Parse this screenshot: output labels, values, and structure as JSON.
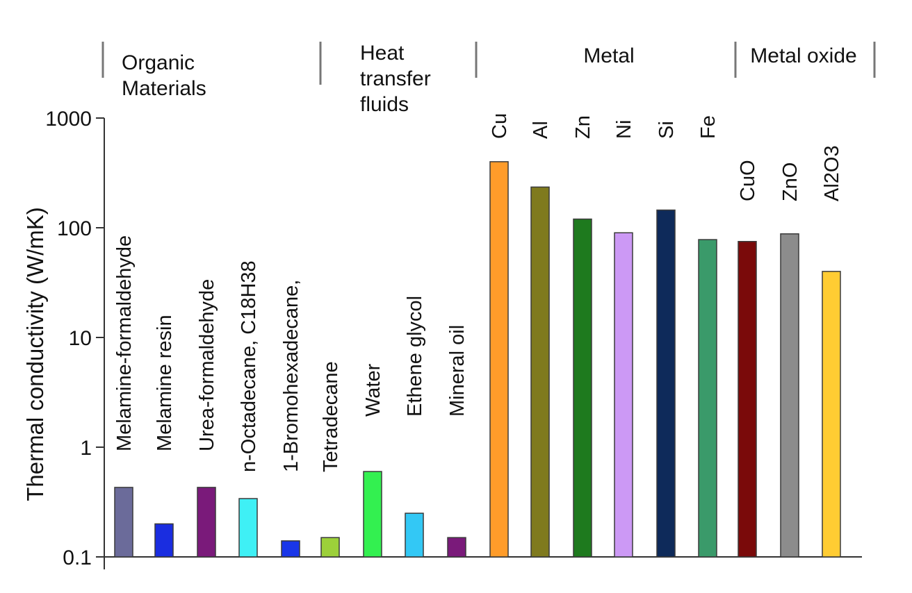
{
  "chart_data": {
    "type": "bar",
    "title": "",
    "xlabel": "",
    "ylabel": "Thermal conductivity (W/mK)",
    "yscale": "log",
    "ylim": [
      0.1,
      1000
    ],
    "yticks": [
      "0.1",
      "1",
      "10",
      "100",
      "1000"
    ],
    "grid": false,
    "legend": "none",
    "groups": [
      {
        "name": "Organic Materials",
        "lines": [
          "Organic",
          "Materials"
        ],
        "categories": [
          "Melamine-formaldehyde",
          "Melamine resin",
          "Urea-formaldehyde",
          "n-Octadecane, C18H38",
          "1-Bromohexadecane,",
          "Tetradecane"
        ]
      },
      {
        "name": "Heat transfer fluids",
        "lines": [
          "Heat",
          "transfer",
          "fluids"
        ],
        "categories": [
          "Water",
          "Ethene glycol",
          "Mineral oil"
        ]
      },
      {
        "name": "Metal",
        "lines": [
          "Metal"
        ],
        "categories": [
          "Cu",
          "Al",
          "Zn",
          "Ni",
          "Si",
          "Fe"
        ]
      },
      {
        "name": "Metal oxide",
        "lines": [
          "Metal oxide"
        ],
        "categories": [
          "CuO",
          "ZnO",
          "Al2O3"
        ]
      }
    ],
    "categories": [
      "Melamine-formaldehyde",
      "Melamine resin",
      "Urea-formaldehyde",
      "n-Octadecane, C18H38",
      "1-Bromohexadecane,",
      "Tetradecane",
      "Water",
      "Ethene glycol",
      "Mineral oil",
      "Cu",
      "Al",
      "Zn",
      "Ni",
      "Si",
      "Fe",
      "CuO",
      "ZnO",
      "Al2O3"
    ],
    "values": [
      0.43,
      0.2,
      0.43,
      0.34,
      0.14,
      0.15,
      0.6,
      0.25,
      0.15,
      400,
      235,
      120,
      90,
      145,
      78,
      75,
      88,
      40
    ],
    "colors": [
      "#6b6b9a",
      "#1a2de0",
      "#7a1a7a",
      "#3ff0f5",
      "#1a36e8",
      "#9cd03a",
      "#33f050",
      "#33c8f5",
      "#7a1a7a",
      "#ff9c2a",
      "#7f7a1e",
      "#1e7a1e",
      "#cc99f5",
      "#0e2a5a",
      "#3a9a6a",
      "#7a0a0a",
      "#8c8c8c",
      "#ffcc33"
    ]
  }
}
